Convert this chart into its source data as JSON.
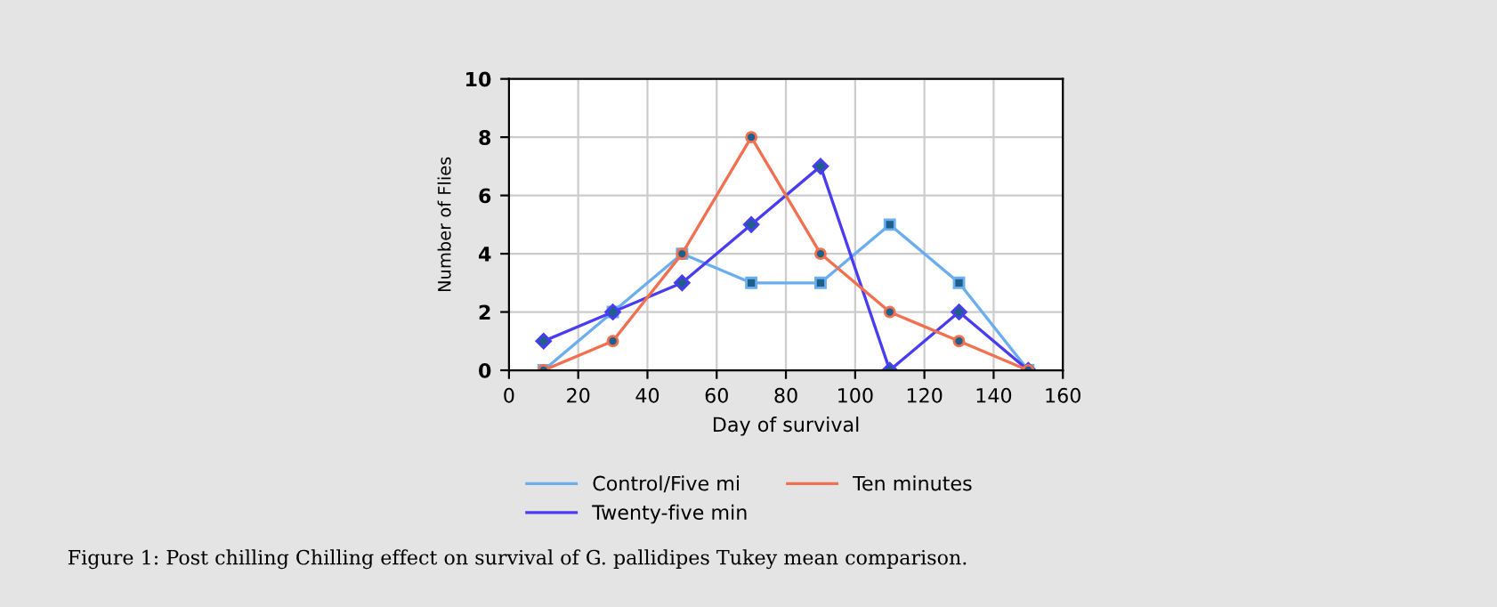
{
  "chart_data": {
    "type": "line",
    "xlabel": "Day of survival",
    "ylabel": "Number of Flies",
    "x": [
      10,
      30,
      50,
      70,
      90,
      110,
      130,
      150
    ],
    "series": [
      {
        "name": "Control/Five mi",
        "color": "#6aaef0",
        "values": [
          0,
          2,
          4,
          3,
          3,
          5,
          3,
          0
        ],
        "marker": "square"
      },
      {
        "name": "Twenty-five min",
        "color": "#4a3cf0",
        "values": [
          1,
          2,
          3,
          5,
          7,
          0,
          2,
          0
        ],
        "marker": "diamond"
      },
      {
        "name": "Ten minutes",
        "color": "#f07050",
        "values": [
          0,
          1,
          4,
          8,
          4,
          2,
          1,
          0
        ],
        "marker": "circle"
      }
    ],
    "xlim": [
      0,
      160
    ],
    "xticks": [
      0,
      20,
      40,
      60,
      80,
      100,
      120,
      140,
      160
    ],
    "ylim": [
      0,
      10
    ],
    "yticks": [
      0,
      2,
      4,
      6,
      8,
      10
    ],
    "grid": true,
    "legend": "bottom",
    "line_style": "solid",
    "annotations": [
      "Figure 1: Post chilling Chilling effect on survival of G. pallidipes Tukey mean comparison."
    ]
  }
}
